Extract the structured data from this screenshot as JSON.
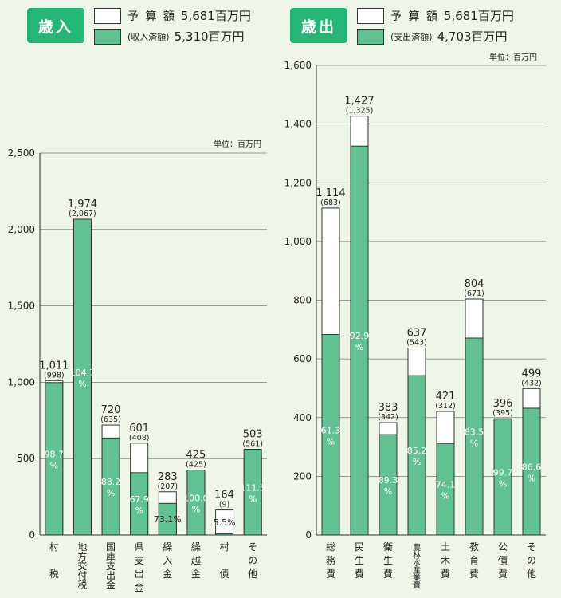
{
  "colors": {
    "accent": "#25b574",
    "bar_fill": "#62c193",
    "budget_fill": "#ffffff",
    "background": "#eef6ea"
  },
  "revenue": {
    "badge": "歳入",
    "legend": [
      {
        "label": "予 算 額",
        "value": "5,681百万円",
        "swatch": "white"
      },
      {
        "label": "(収入済額)",
        "value": "5,310百万円",
        "swatch": "green"
      }
    ],
    "unit": "単位：百万円"
  },
  "expenditure": {
    "badge": "歳出",
    "legend": [
      {
        "label": "予 算 額",
        "value": "5,681百万円",
        "swatch": "white"
      },
      {
        "label": "(支出済額)",
        "value": "4,703百万円",
        "swatch": "green"
      }
    ],
    "unit": "単位：百万円"
  },
  "chart_data": [
    {
      "type": "bar",
      "title": "歳入",
      "ylim": [
        0,
        2500
      ],
      "yticks": [
        0,
        500,
        1000,
        1500,
        2000,
        2500
      ],
      "ytick_labels": [
        "0",
        "500",
        "1,000",
        "1,500",
        "2,000",
        "2,500"
      ],
      "categories": [
        "村 税",
        "地方交付税",
        "国庫支出金",
        "県支出金",
        "繰入金",
        "繰越金",
        "村 債",
        "その他"
      ],
      "category_chars": [
        [
          "村",
          "",
          "税"
        ],
        [
          "地",
          "方",
          "交",
          "付",
          "税"
        ],
        [
          "国",
          "庫",
          "支",
          "出",
          "金"
        ],
        [
          "県",
          "支",
          "出",
          "金"
        ],
        [
          "繰",
          "入",
          "金"
        ],
        [
          "繰",
          "越",
          "金"
        ],
        [
          "村",
          "",
          "債"
        ],
        [
          "そ",
          "の",
          "他"
        ]
      ],
      "series": [
        {
          "name": "予算額",
          "values": [
            1011,
            1974,
            720,
            601,
            283,
            425,
            164,
            503
          ]
        },
        {
          "name": "収入済額",
          "values": [
            998,
            2067,
            635,
            408,
            207,
            425,
            9,
            561
          ]
        }
      ],
      "top_labels": [
        "1,011",
        "1,974",
        "720",
        "601",
        "283",
        "425",
        "164",
        "503"
      ],
      "paren_labels": [
        "(998)",
        "(2,067)",
        "(635)",
        "(408)",
        "(207)",
        "(425)",
        "(9)",
        "(561)"
      ],
      "percentages": [
        "98.7",
        "104.7",
        "88.2",
        "67.9",
        "73.1%",
        "100.0",
        "5.5%",
        "111.5"
      ],
      "percent_inline": [
        false,
        false,
        false,
        false,
        true,
        false,
        true,
        false
      ],
      "grid": true
    },
    {
      "type": "bar",
      "title": "歳出",
      "ylim": [
        0,
        1600
      ],
      "yticks": [
        0,
        200,
        400,
        600,
        800,
        1000,
        1200,
        1400,
        1600
      ],
      "ytick_labels": [
        "0",
        "200",
        "400",
        "600",
        "800",
        "1,000",
        "1,200",
        "1,400",
        "1,600"
      ],
      "categories": [
        "総務費",
        "民生費",
        "衛生費",
        "農林水産業費",
        "土木費",
        "教育費",
        "公債費",
        "その他"
      ],
      "category_chars": [
        [
          "総",
          "務",
          "費"
        ],
        [
          "民",
          "生",
          "費"
        ],
        [
          "衛",
          "生",
          "費"
        ],
        [
          "農",
          "林",
          "水",
          "産",
          "業",
          "費"
        ],
        [
          "土",
          "木",
          "費"
        ],
        [
          "教",
          "育",
          "費"
        ],
        [
          "公",
          "債",
          "費"
        ],
        [
          "そ",
          "の",
          "他"
        ]
      ],
      "series": [
        {
          "name": "予算額",
          "values": [
            1114,
            1427,
            383,
            637,
            421,
            804,
            396,
            499
          ]
        },
        {
          "name": "支出済額",
          "values": [
            683,
            1325,
            342,
            543,
            312,
            671,
            395,
            432
          ]
        }
      ],
      "top_labels": [
        "1,114",
        "1,427",
        "383",
        "637",
        "421",
        "804",
        "396",
        "499"
      ],
      "paren_labels": [
        "(683)",
        "(1,325)",
        "(342)",
        "(543)",
        "(312)",
        "(671)",
        "(395)",
        "(432)"
      ],
      "percentages": [
        "61.3",
        "92.9",
        "89.3",
        "85.2",
        "74.1",
        "83.5",
        "99.7",
        "86.6"
      ],
      "percent_inline": [
        false,
        false,
        false,
        false,
        false,
        false,
        false,
        false
      ],
      "grid": true
    }
  ]
}
